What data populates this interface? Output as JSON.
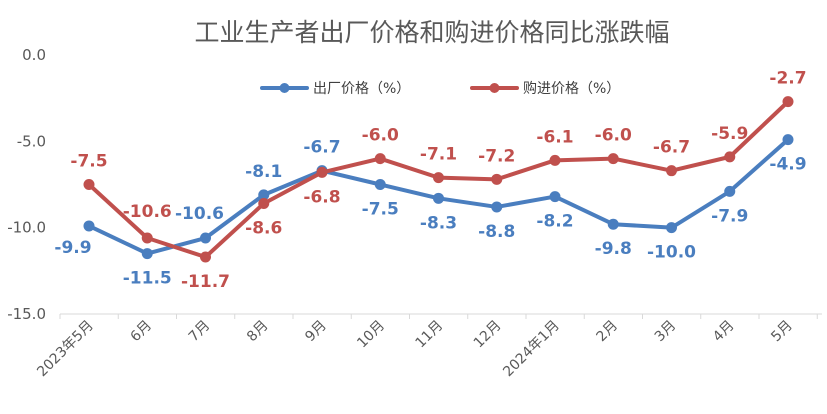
{
  "chart_data": {
    "type": "line",
    "title": "工业生产者出厂价格和购进价格同比涨跌幅",
    "categories": [
      "2023年5月",
      "6月",
      "7月",
      "8月",
      "9月",
      "10月",
      "11月",
      "12月",
      "2024年1月",
      "2月",
      "3月",
      "4月",
      "5月"
    ],
    "ylim": [
      -15,
      0
    ],
    "yticks": [
      "0.0",
      "-5.0",
      "-10.0",
      "-15.0"
    ],
    "grid": false,
    "legend_position": "top",
    "series": [
      {
        "name": "出厂价格（%）",
        "color": "#4a7ebf",
        "values": [
          -9.9,
          -11.5,
          -10.6,
          -8.1,
          -6.7,
          -7.5,
          -8.3,
          -8.8,
          -8.2,
          -9.8,
          -10.0,
          -7.9,
          -4.9
        ],
        "labels": [
          "-9.9",
          "-11.5",
          "-10.6",
          "-8.1",
          "-6.7",
          "-7.5",
          "-8.3",
          "-8.8",
          "-8.2",
          "-9.8",
          "-10.0",
          "-7.9",
          "-4.9"
        ]
      },
      {
        "name": "购进价格（%）",
        "color": "#c0504d",
        "values": [
          -7.5,
          -10.6,
          -11.7,
          -8.6,
          -6.8,
          -6.0,
          -7.1,
          -7.2,
          -6.1,
          -6.0,
          -6.7,
          -5.9,
          -2.7
        ],
        "labels": [
          "-7.5",
          "-10.6",
          "-11.7",
          "-8.6",
          "-6.8",
          "-6.0",
          "-7.1",
          "-7.2",
          "-6.1",
          "-6.0",
          "-6.7",
          "-5.9",
          "-2.7"
        ]
      }
    ]
  }
}
